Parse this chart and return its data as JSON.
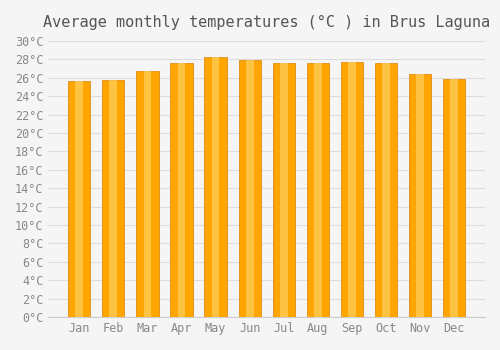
{
  "title": "Average monthly temperatures (°C ) in Brus Laguna",
  "months": [
    "Jan",
    "Feb",
    "Mar",
    "Apr",
    "May",
    "Jun",
    "Jul",
    "Aug",
    "Sep",
    "Oct",
    "Nov",
    "Dec"
  ],
  "values": [
    25.6,
    25.8,
    26.7,
    27.6,
    28.3,
    27.9,
    27.6,
    27.6,
    27.7,
    27.6,
    26.4,
    25.9
  ],
  "bar_color_main": "#FFA500",
  "bar_color_light": "#FFD060",
  "bar_color_edge": "#E08000",
  "background_color": "#F5F5F5",
  "grid_color": "#DDDDDD",
  "text_color": "#888888",
  "ylim": [
    0,
    30
  ],
  "ytick_step": 2,
  "title_fontsize": 11,
  "tick_fontsize": 8.5
}
